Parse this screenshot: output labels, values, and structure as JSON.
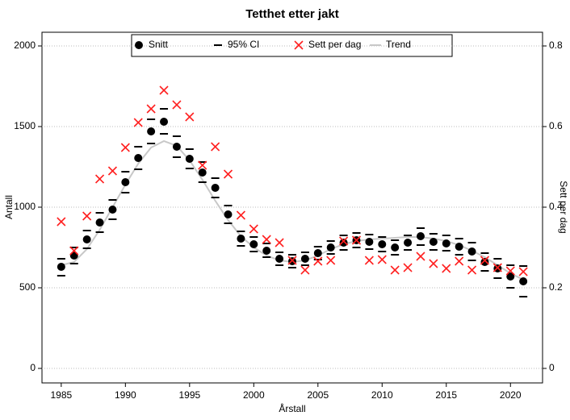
{
  "chart_data": {
    "type": "line",
    "title": "Tetthet etter jakt",
    "xlabel": "Årstall",
    "ylabel": "Antall",
    "y2label": "Sett per dag",
    "x": [
      1985,
      1986,
      1987,
      1988,
      1989,
      1990,
      1991,
      1992,
      1993,
      1994,
      1995,
      1996,
      1997,
      1998,
      1999,
      2000,
      2001,
      2002,
      2003,
      2004,
      2005,
      2006,
      2007,
      2008,
      2009,
      2010,
      2011,
      2012,
      2013,
      2014,
      2015,
      2016,
      2017,
      2018,
      2019,
      2020,
      2021
    ],
    "series": [
      {
        "name": "Snitt",
        "color": "#000000",
        "values": [
          630,
          700,
          800,
          905,
          985,
          1155,
          1305,
          1470,
          1530,
          1375,
          1300,
          1215,
          1120,
          955,
          805,
          770,
          730,
          680,
          665,
          680,
          715,
          750,
          780,
          795,
          785,
          770,
          750,
          780,
          820,
          785,
          775,
          755,
          725,
          660,
          620,
          570,
          540
        ]
      },
      {
        "name": "95% CI",
        "color": "#000000",
        "lower": [
          575,
          650,
          745,
          845,
          925,
          1090,
          1235,
          1395,
          1455,
          1310,
          1240,
          1155,
          1060,
          900,
          760,
          725,
          690,
          640,
          625,
          640,
          675,
          710,
          735,
          750,
          740,
          725,
          705,
          735,
          765,
          735,
          730,
          705,
          670,
          605,
          560,
          500,
          445
        ],
        "upper": [
          680,
          750,
          855,
          965,
          1045,
          1220,
          1375,
          1545,
          1610,
          1440,
          1360,
          1280,
          1180,
          1010,
          850,
          815,
          775,
          720,
          705,
          720,
          755,
          790,
          825,
          840,
          830,
          815,
          795,
          825,
          870,
          835,
          825,
          805,
          780,
          715,
          680,
          640,
          635
        ]
      },
      {
        "name": "Sett per dag",
        "color": "#ff2020",
        "axis": "y2",
        "values": [
          0.364,
          0.292,
          0.378,
          0.47,
          0.49,
          0.548,
          0.61,
          0.644,
          0.69,
          0.654,
          0.624,
          0.504,
          0.55,
          0.482,
          0.38,
          0.346,
          0.32,
          0.312,
          0.268,
          0.244,
          0.266,
          0.268,
          0.316,
          0.318,
          0.268,
          0.27,
          0.244,
          0.25,
          0.278,
          0.26,
          0.248,
          0.266,
          0.244,
          0.268,
          0.25,
          0.242,
          0.24
        ]
      },
      {
        "name": "Trend",
        "color": "#c8c8c8",
        "values": [
          640,
          660,
          740,
          860,
          1000,
          1140,
          1270,
          1370,
          1410,
          1380,
          1290,
          1170,
          1040,
          920,
          820,
          750,
          700,
          670,
          660,
          670,
          700,
          740,
          770,
          790,
          800,
          805,
          810,
          815,
          815,
          805,
          790,
          765,
          730,
          690,
          640,
          590,
          550
        ]
      }
    ],
    "xlim": [
      1983.5,
      2022.5
    ],
    "xticks": [
      1985,
      1990,
      1995,
      2000,
      2005,
      2010,
      2015,
      2020
    ],
    "ylim": [
      -90,
      2085
    ],
    "yticks": [
      0,
      500,
      1000,
      1500,
      2000
    ],
    "y2lim": [
      -0.036,
      0.834
    ],
    "y2ticks": [
      0,
      0.2,
      0.4,
      0.6,
      0.8
    ],
    "grid": true,
    "legend": "top"
  }
}
